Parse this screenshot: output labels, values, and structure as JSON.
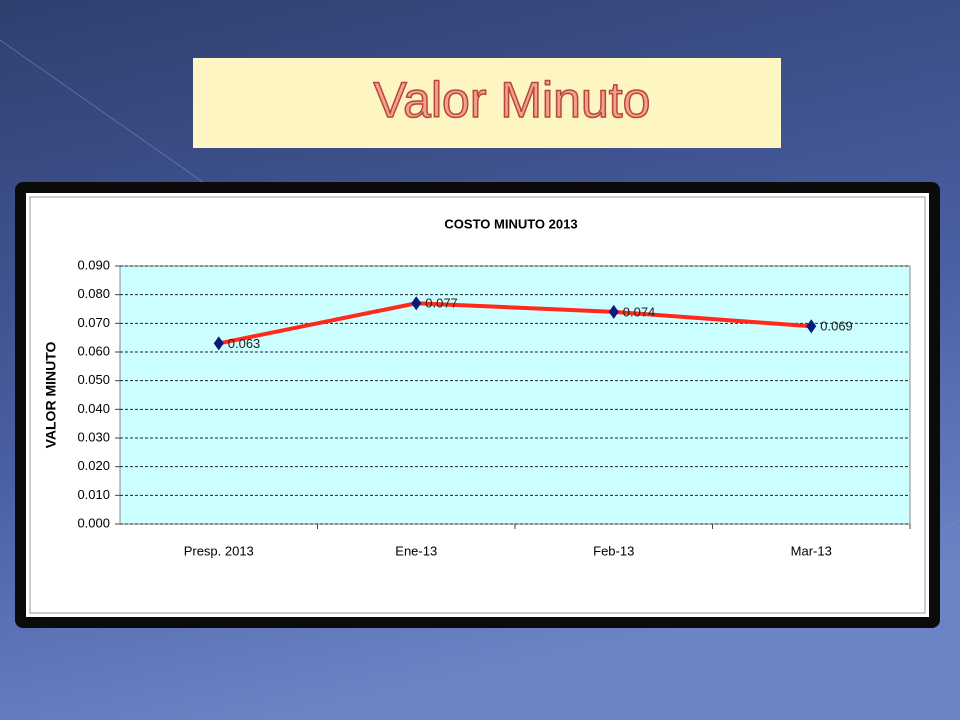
{
  "slide_title": "Valor Minuto",
  "chart_data": {
    "type": "line",
    "title": "COSTO MINUTO 2013",
    "y_label": "VALOR MINUTO",
    "categories": [
      "Presp. 2013",
      "Ene-13",
      "Feb-13",
      "Mar-13"
    ],
    "series": [
      {
        "name": "VALOR MINUTO",
        "color": "#ff2a1a",
        "marker_color": "#0a1a7a",
        "values": [
          0.063,
          0.077,
          0.074,
          0.069
        ]
      }
    ],
    "ylim": [
      0,
      0.09
    ],
    "yticks": [
      {
        "value": 0,
        "label": "0.000"
      },
      {
        "value": 0.01,
        "label": "0.010"
      },
      {
        "value": 0.02,
        "label": "0.020"
      },
      {
        "value": 0.03,
        "label": "0.030"
      },
      {
        "value": 0.04,
        "label": "0.040"
      },
      {
        "value": 0.05,
        "label": "0.050"
      },
      {
        "value": 0.06,
        "label": "0.060"
      },
      {
        "value": 0.07,
        "label": "0.070"
      },
      {
        "value": 0.08,
        "label": "0.080"
      },
      {
        "value": 0.09,
        "label": "0.090"
      }
    ],
    "grid": true
  }
}
